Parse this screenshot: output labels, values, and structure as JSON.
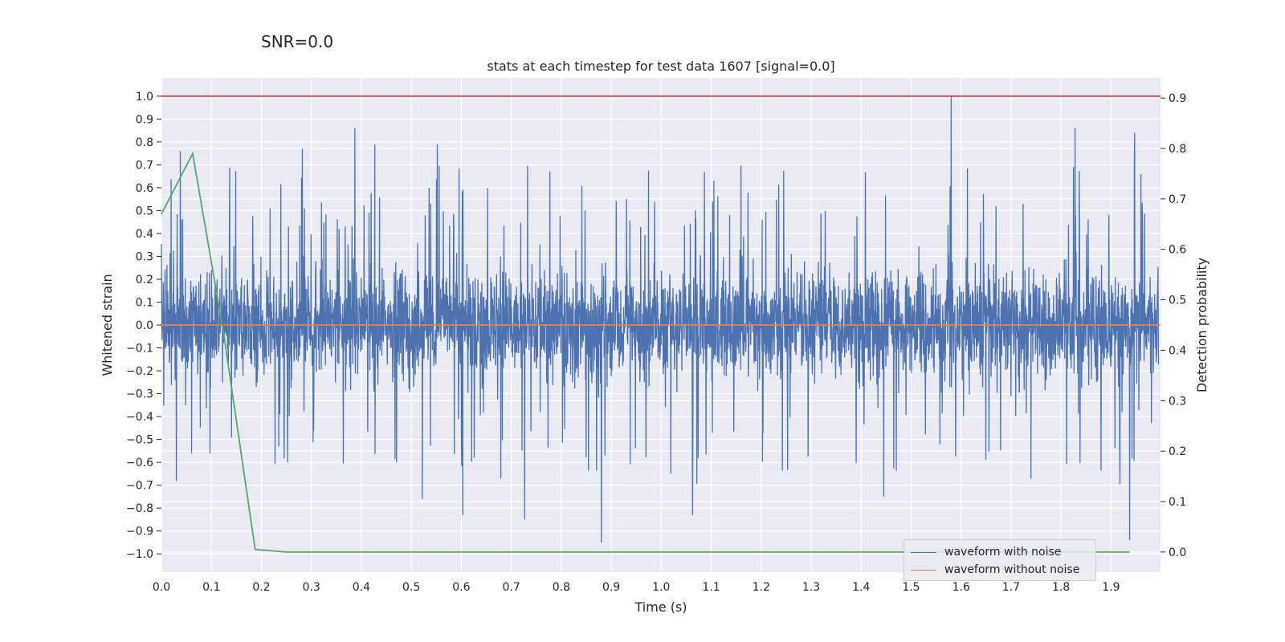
{
  "snr_label": "SNR=0.0",
  "chart_data": {
    "type": "line",
    "title": "stats at each timestep for test data 1607 [signal=0.0]",
    "xlabel": "Time (s)",
    "ylabel": "Whitened strain",
    "y2label": "Detection probability",
    "xlim": [
      0.0,
      1.999
    ],
    "ylim": [
      -1.08,
      1.08
    ],
    "y2lim": [
      -0.04,
      0.94
    ],
    "xticks": [
      0.0,
      0.1,
      0.2,
      0.3,
      0.4,
      0.5,
      0.6,
      0.7,
      0.8,
      0.9,
      1.0,
      1.1,
      1.2,
      1.3,
      1.4,
      1.5,
      1.6,
      1.7,
      1.8,
      1.9
    ],
    "xtick_labels": [
      "0.0",
      "0.1",
      "0.2",
      "0.3",
      "0.4",
      "0.5",
      "0.6",
      "0.7",
      "0.8",
      "0.9",
      "1.0",
      "1.1",
      "1.2",
      "1.3",
      "1.4",
      "1.5",
      "1.6",
      "1.7",
      "1.8",
      "1.9"
    ],
    "yticks": [
      1.0,
      0.9,
      0.8,
      0.7,
      0.6,
      0.5,
      0.4,
      0.3,
      0.2,
      0.1,
      0.0,
      -0.1,
      -0.2,
      -0.3,
      -0.4,
      -0.5,
      -0.6,
      -0.7,
      -0.8,
      -0.9,
      -1.0
    ],
    "ytick_labels": [
      "1.0",
      "0.9",
      "0.8",
      "0.7",
      "0.6",
      "0.5",
      "0.4",
      "0.3",
      "0.2",
      "0.1",
      "0.0",
      "−0.1",
      "−0.2",
      "−0.3",
      "−0.4",
      "−0.5",
      "−0.6",
      "−0.7",
      "−0.8",
      "−0.9",
      "−1.0"
    ],
    "y2ticks": [
      0.9,
      0.8,
      0.7,
      0.6,
      0.5,
      0.4,
      0.3,
      0.2,
      0.1,
      0.0
    ],
    "y2tick_labels": [
      "0.9",
      "0.8",
      "0.7",
      "0.6",
      "0.5",
      "0.4",
      "0.3",
      "0.2",
      "0.1",
      "0.0"
    ],
    "grid": true,
    "background": "#eaeaf2",
    "legend_position": "lower-right",
    "series": [
      {
        "name": "waveform with noise",
        "color": "#4c72b0",
        "axis": "left",
        "kind": "noise",
        "description_range": [
          -0.95,
          1.0
        ],
        "peaks": [
          {
            "x": 0.038,
            "y": 0.76
          },
          {
            "x": 0.387,
            "y": 0.86
          },
          {
            "x": 0.427,
            "y": 0.79
          },
          {
            "x": 0.552,
            "y": 0.79
          },
          {
            "x": 0.282,
            "y": 0.77
          },
          {
            "x": 0.88,
            "y": -0.95
          },
          {
            "x": 0.727,
            "y": -0.85
          },
          {
            "x": 1.58,
            "y": 1.0
          },
          {
            "x": 1.828,
            "y": 0.86
          },
          {
            "x": 1.947,
            "y": 0.84
          },
          {
            "x": 1.937,
            "y": -0.94
          },
          {
            "x": 1.063,
            "y": -0.83
          },
          {
            "x": 0.603,
            "y": -0.83
          },
          {
            "x": 1.445,
            "y": -0.75
          },
          {
            "x": 0.522,
            "y": -0.76
          }
        ]
      },
      {
        "name": "waveform without noise",
        "color": "#dd8452",
        "axis": "left",
        "x": [
          0.0,
          1.999
        ],
        "y": [
          0.0,
          0.0
        ]
      },
      {
        "name": "",
        "color": "#55a868",
        "axis": "right",
        "x": [
          0.0,
          0.0625,
          0.125,
          0.1875,
          0.25,
          0.3125,
          0.375,
          0.4375,
          0.5,
          0.5625,
          0.625,
          0.6875,
          0.75,
          0.8125,
          0.875,
          0.9375,
          1.0,
          1.0625,
          1.125,
          1.1875,
          1.25,
          1.3125,
          1.375,
          1.4375,
          1.5,
          1.5625,
          1.625,
          1.6875,
          1.75,
          1.8125,
          1.875,
          1.9375
        ],
        "y": [
          0.67,
          0.79,
          0.43,
          0.005,
          0.0,
          0.0,
          0.0,
          0.0,
          0.0,
          0.0,
          0.0,
          0.0,
          0.0,
          0.0,
          0.0,
          0.0,
          0.0,
          0.0,
          0.0,
          0.0,
          0.0,
          0.0,
          0.0,
          0.0,
          0.0,
          0.0,
          0.0,
          0.0,
          0.0,
          0.0,
          0.0,
          0.0
        ]
      },
      {
        "name": "",
        "color": "#c44e52",
        "axis": "left",
        "x": [
          0.0,
          1.999
        ],
        "y": [
          1.0,
          1.0
        ]
      }
    ]
  }
}
